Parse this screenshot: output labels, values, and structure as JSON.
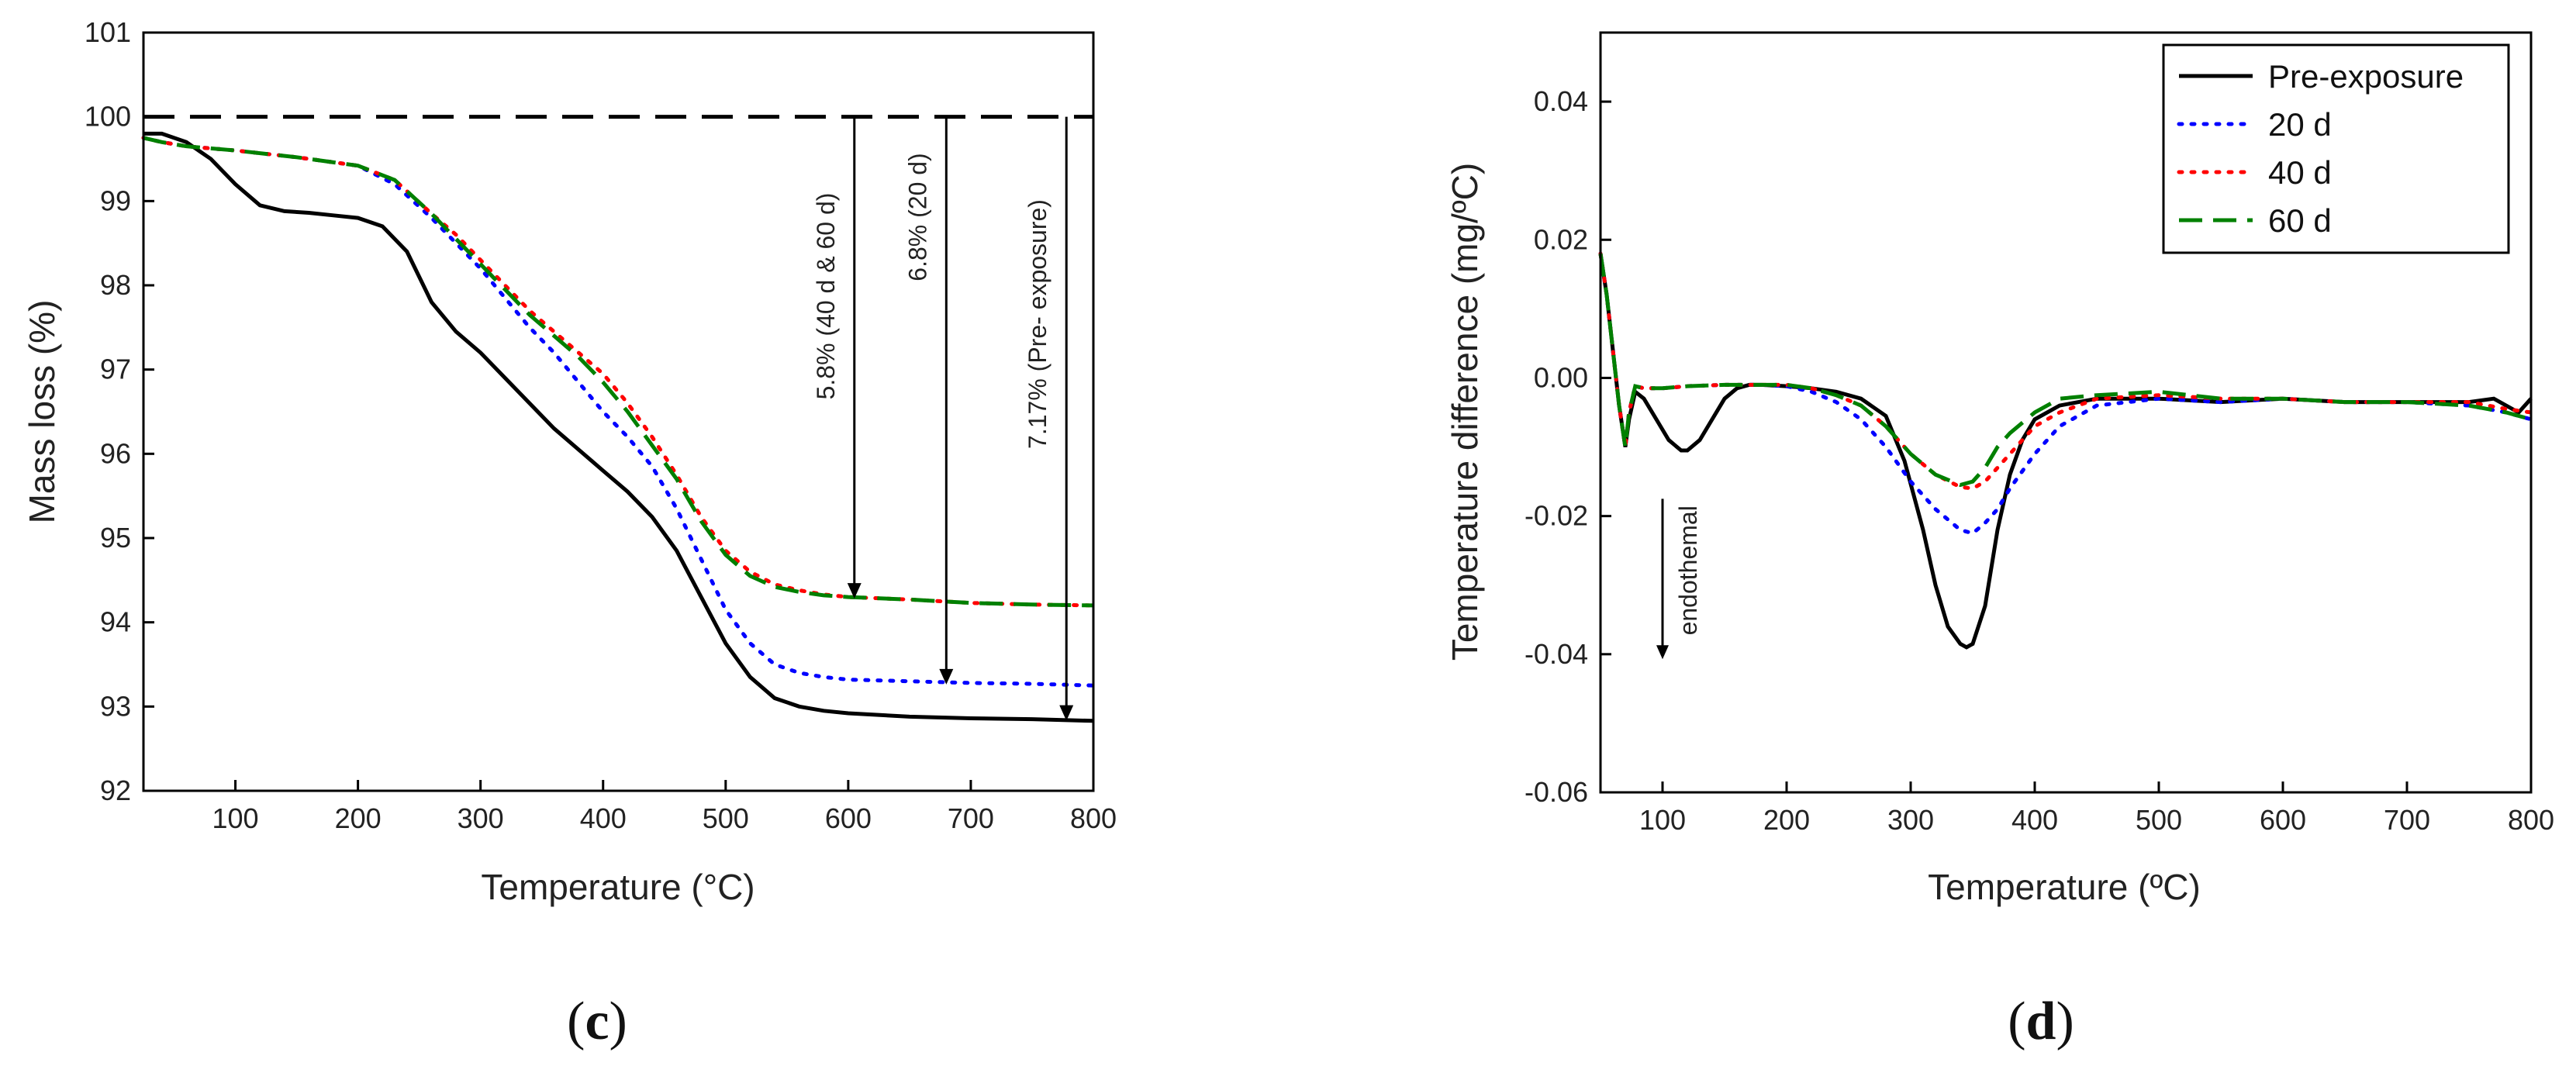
{
  "colors": {
    "pre_exposure": "#000000",
    "d20": "#0000ff",
    "d40": "#ff0000",
    "d60": "#008000",
    "reference": "#000000"
  },
  "chart_data": [
    {
      "type": "line",
      "panel_label": "c",
      "xlabel": "Temperature (°C)",
      "ylabel": "Mass loss (%)",
      "xlim": [
        25,
        800
      ],
      "ylim": [
        92,
        101
      ],
      "xticks": [
        100,
        200,
        300,
        400,
        500,
        600,
        700,
        800
      ],
      "yticks": [
        92,
        93,
        94,
        95,
        96,
        97,
        98,
        99,
        100,
        101
      ],
      "reference_line": {
        "y": 100,
        "style": "dashed"
      },
      "series": [
        {
          "name": "Pre-exposure",
          "color": "#000000",
          "dash": "solid",
          "x": [
            25,
            40,
            60,
            80,
            100,
            120,
            140,
            160,
            180,
            200,
            220,
            240,
            260,
            280,
            300,
            320,
            340,
            360,
            380,
            400,
            420,
            440,
            460,
            480,
            500,
            520,
            540,
            560,
            580,
            600,
            650,
            700,
            750,
            800
          ],
          "y": [
            99.8,
            99.8,
            99.7,
            99.5,
            99.2,
            98.95,
            98.88,
            98.86,
            98.83,
            98.8,
            98.7,
            98.4,
            97.8,
            97.45,
            97.2,
            96.9,
            96.6,
            96.3,
            96.05,
            95.8,
            95.55,
            95.25,
            94.85,
            94.3,
            93.75,
            93.35,
            93.1,
            93.0,
            92.95,
            92.92,
            92.88,
            92.86,
            92.85,
            92.83
          ]
        },
        {
          "name": "20 d",
          "color": "#0000ff",
          "dash": "dotted",
          "x": [
            25,
            40,
            60,
            100,
            150,
            200,
            230,
            260,
            280,
            300,
            320,
            340,
            360,
            380,
            400,
            420,
            440,
            460,
            480,
            500,
            520,
            540,
            560,
            580,
            600,
            650,
            700,
            750,
            800
          ],
          "y": [
            99.75,
            99.7,
            99.65,
            99.6,
            99.52,
            99.42,
            99.2,
            98.8,
            98.5,
            98.2,
            97.85,
            97.5,
            97.2,
            96.85,
            96.5,
            96.2,
            95.85,
            95.35,
            94.75,
            94.15,
            93.75,
            93.5,
            93.4,
            93.35,
            93.32,
            93.3,
            93.28,
            93.27,
            93.25
          ]
        },
        {
          "name": "40 d",
          "color": "#ff0000",
          "dash": "dotted",
          "x": [
            25,
            40,
            60,
            100,
            150,
            200,
            230,
            260,
            280,
            300,
            320,
            340,
            360,
            380,
            400,
            420,
            440,
            460,
            480,
            500,
            520,
            540,
            560,
            580,
            600,
            650,
            700,
            750,
            800
          ],
          "y": [
            99.75,
            99.7,
            99.65,
            99.6,
            99.52,
            99.42,
            99.25,
            98.85,
            98.6,
            98.3,
            98.0,
            97.7,
            97.45,
            97.2,
            96.95,
            96.6,
            96.2,
            95.75,
            95.25,
            94.85,
            94.6,
            94.45,
            94.38,
            94.33,
            94.3,
            94.27,
            94.23,
            94.21,
            94.2
          ]
        },
        {
          "name": "60 d",
          "color": "#008000",
          "dash": "dashed",
          "x": [
            25,
            40,
            60,
            100,
            150,
            200,
            230,
            260,
            280,
            300,
            320,
            340,
            360,
            380,
            400,
            420,
            440,
            460,
            480,
            500,
            520,
            540,
            560,
            580,
            600,
            650,
            700,
            750,
            800
          ],
          "y": [
            99.75,
            99.7,
            99.65,
            99.6,
            99.52,
            99.42,
            99.25,
            98.85,
            98.55,
            98.25,
            97.95,
            97.65,
            97.4,
            97.15,
            96.85,
            96.5,
            96.1,
            95.7,
            95.2,
            94.8,
            94.55,
            94.42,
            94.36,
            94.32,
            94.3,
            94.27,
            94.23,
            94.21,
            94.2
          ]
        }
      ],
      "annotations": [
        {
          "text": "5.8% (40 d & 60 d)",
          "x": 605
        },
        {
          "text": "6.8% (20 d)",
          "x": 680
        },
        {
          "text": "7.17% (Pre- exposure)",
          "x": 778
        }
      ]
    },
    {
      "type": "line",
      "panel_label": "d",
      "xlabel": "Temperature (ºC)",
      "ylabel": "Temperature difference (mg/ºC)",
      "xlim": [
        50,
        800
      ],
      "ylim": [
        -0.06,
        0.05
      ],
      "xticks": [
        100,
        200,
        300,
        400,
        500,
        600,
        700,
        800
      ],
      "yticks": [
        "-0.06",
        "-0.04",
        "-0.02",
        "0.00",
        "0.02",
        "0.04"
      ],
      "legend_position": "top-right",
      "annotation": {
        "text": "endothemal",
        "x": 100
      },
      "series": [
        {
          "name": "Pre-exposure",
          "color": "#000000",
          "dash": "solid",
          "x": [
            50,
            55,
            60,
            65,
            70,
            73,
            78,
            85,
            95,
            105,
            115,
            120,
            130,
            140,
            150,
            160,
            170,
            180,
            200,
            220,
            240,
            260,
            280,
            295,
            310,
            320,
            330,
            340,
            345,
            350,
            360,
            370,
            380,
            390,
            400,
            420,
            450,
            500,
            550,
            600,
            650,
            700,
            750,
            770,
            790,
            800
          ],
          "y": [
            0.018,
            0.012,
            0.004,
            -0.004,
            -0.01,
            -0.006,
            -0.002,
            -0.003,
            -0.006,
            -0.009,
            -0.0105,
            -0.0105,
            -0.009,
            -0.006,
            -0.003,
            -0.0015,
            -0.001,
            -0.001,
            -0.0012,
            -0.0015,
            -0.002,
            -0.003,
            -0.0055,
            -0.012,
            -0.022,
            -0.03,
            -0.036,
            -0.0385,
            -0.039,
            -0.0385,
            -0.033,
            -0.022,
            -0.014,
            -0.009,
            -0.006,
            -0.004,
            -0.003,
            -0.003,
            -0.0035,
            -0.003,
            -0.0035,
            -0.0035,
            -0.0035,
            -0.003,
            -0.005,
            -0.003
          ]
        },
        {
          "name": "20 d",
          "color": "#0000ff",
          "dash": "dotted",
          "x": [
            50,
            55,
            60,
            65,
            70,
            73,
            78,
            85,
            100,
            120,
            150,
            180,
            200,
            220,
            240,
            260,
            280,
            300,
            320,
            340,
            350,
            360,
            370,
            380,
            400,
            420,
            450,
            500,
            550,
            600,
            650,
            700,
            750,
            780,
            800
          ],
          "y": [
            0.018,
            0.012,
            0.004,
            -0.004,
            -0.01,
            -0.005,
            -0.0012,
            -0.0015,
            -0.0015,
            -0.0012,
            -0.001,
            -0.001,
            -0.0012,
            -0.002,
            -0.0035,
            -0.006,
            -0.01,
            -0.015,
            -0.019,
            -0.022,
            -0.0225,
            -0.021,
            -0.019,
            -0.016,
            -0.011,
            -0.007,
            -0.004,
            -0.003,
            -0.0035,
            -0.003,
            -0.0035,
            -0.0035,
            -0.004,
            -0.005,
            -0.006
          ]
        },
        {
          "name": "40 d",
          "color": "#ff0000",
          "dash": "dotted",
          "x": [
            50,
            55,
            60,
            65,
            70,
            73,
            78,
            85,
            100,
            120,
            150,
            180,
            200,
            220,
            240,
            260,
            280,
            300,
            320,
            340,
            350,
            360,
            370,
            380,
            400,
            420,
            450,
            500,
            550,
            600,
            650,
            700,
            750,
            780,
            800
          ],
          "y": [
            0.018,
            0.012,
            0.004,
            -0.004,
            -0.01,
            -0.005,
            -0.0012,
            -0.0015,
            -0.0015,
            -0.0012,
            -0.001,
            -0.001,
            -0.001,
            -0.0015,
            -0.0025,
            -0.004,
            -0.007,
            -0.011,
            -0.014,
            -0.0158,
            -0.016,
            -0.015,
            -0.013,
            -0.011,
            -0.007,
            -0.005,
            -0.003,
            -0.0025,
            -0.003,
            -0.003,
            -0.0035,
            -0.0035,
            -0.0035,
            -0.0045,
            -0.005
          ]
        },
        {
          "name": "60 d",
          "color": "#008000",
          "dash": "dashed",
          "x": [
            50,
            55,
            60,
            65,
            70,
            73,
            78,
            85,
            100,
            120,
            150,
            180,
            200,
            220,
            240,
            260,
            280,
            300,
            320,
            340,
            350,
            360,
            370,
            380,
            400,
            420,
            450,
            500,
            550,
            600,
            650,
            700,
            750,
            780,
            800
          ],
          "y": [
            0.018,
            0.012,
            0.004,
            -0.004,
            -0.01,
            -0.005,
            -0.0012,
            -0.0015,
            -0.0015,
            -0.0012,
            -0.001,
            -0.001,
            -0.001,
            -0.0015,
            -0.0025,
            -0.004,
            -0.007,
            -0.011,
            -0.014,
            -0.0155,
            -0.015,
            -0.013,
            -0.01,
            -0.008,
            -0.005,
            -0.003,
            -0.0025,
            -0.002,
            -0.003,
            -0.003,
            -0.0035,
            -0.0035,
            -0.004,
            -0.005,
            -0.006
          ]
        }
      ]
    }
  ]
}
